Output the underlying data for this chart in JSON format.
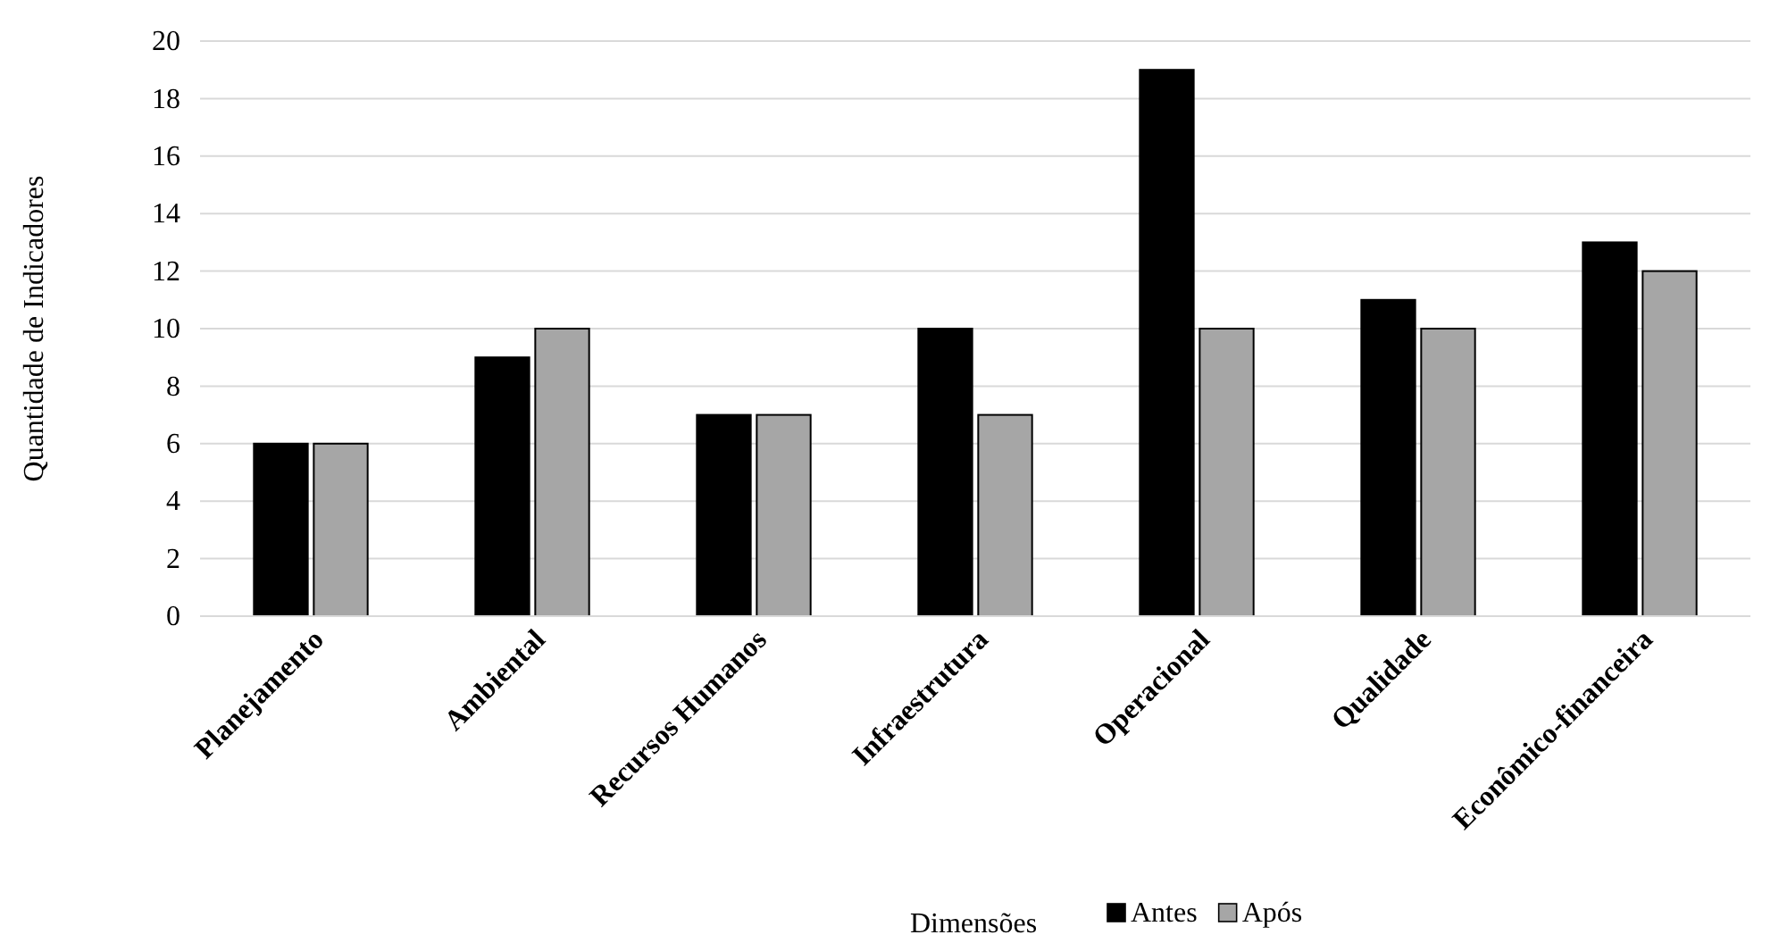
{
  "chart_data": {
    "type": "bar",
    "xlabel": "Dimensões",
    "ylabel": "Quantidade de Indicadores",
    "categories": [
      "Planejamento",
      "Ambiental",
      "Recursos Humanos",
      "Infraestrutura",
      "Operacional",
      "Qualidade",
      "Econômico-financeira"
    ],
    "series": [
      {
        "name": "Antes",
        "color": "#000000",
        "values": [
          6,
          9,
          7,
          10,
          19,
          11,
          13
        ]
      },
      {
        "name": "Após",
        "color": "#a6a6a6",
        "values": [
          6,
          10,
          7,
          7,
          10,
          10,
          12
        ]
      }
    ],
    "ylim": [
      0,
      20
    ],
    "yticks": [
      0,
      2,
      4,
      6,
      8,
      10,
      12,
      14,
      16,
      18,
      20
    ],
    "grid": "y",
    "legend": "bottom"
  }
}
